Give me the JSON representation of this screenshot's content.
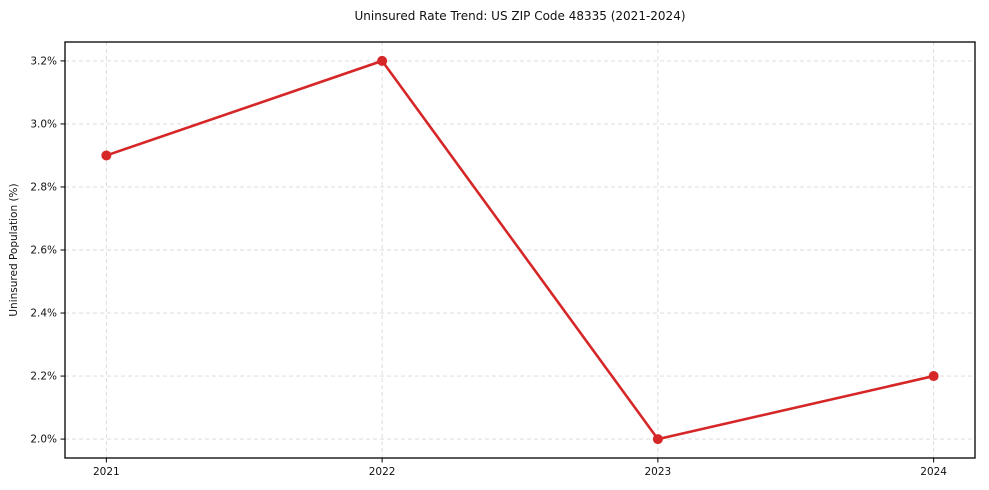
{
  "figure": {
    "title": "Uninsured Rate Trend: US ZIP Code 48335 (2021-2024)"
  },
  "chart_data": {
    "type": "line",
    "title": "Uninsured Rate Trend: US ZIP Code 48335 (2021-2024)",
    "xlabel": "",
    "ylabel": "Uninsured Population (%)",
    "x": [
      2021,
      2022,
      2023,
      2024
    ],
    "x_tick_labels": [
      "2021",
      "2022",
      "2023",
      "2024"
    ],
    "series": [
      {
        "name": "Uninsured rate",
        "values": [
          2.9,
          3.2,
          2.0,
          2.2
        ],
        "color": "#d62728",
        "marker": "circle"
      }
    ],
    "y_ticks": [
      2.0,
      2.2,
      2.4,
      2.6,
      2.8,
      3.0,
      3.2
    ],
    "y_tick_labels": [
      "2.0%",
      "2.2%",
      "2.4%",
      "2.6%",
      "2.8%",
      "3.0%",
      "3.2%"
    ],
    "xlim": [
      2020.85,
      2024.15
    ],
    "ylim": [
      1.94,
      3.26
    ],
    "grid": true,
    "grid_style": "dashed",
    "grid_color": "#d9d9d9",
    "axis_color": "#000000",
    "legend": "none",
    "background_color": "#ffffff"
  }
}
